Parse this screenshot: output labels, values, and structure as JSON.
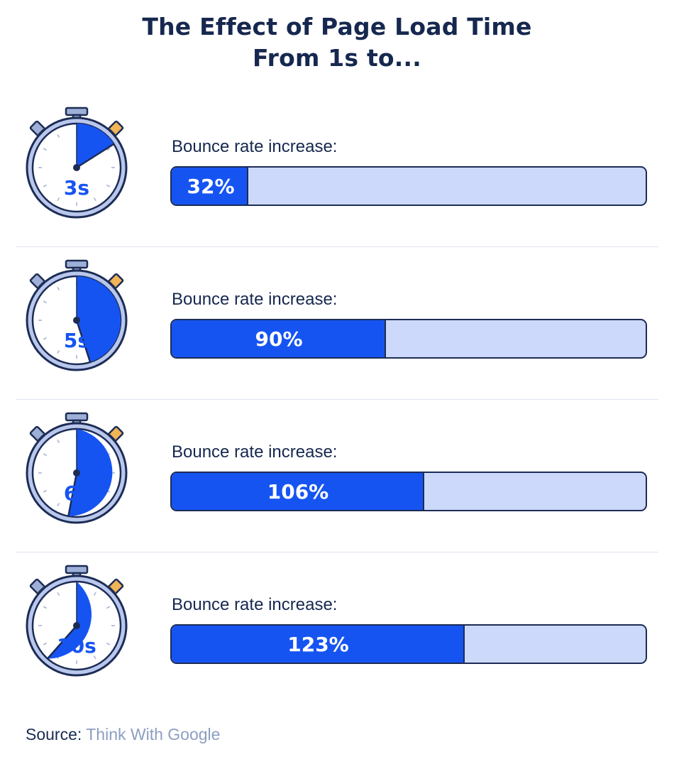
{
  "header": {
    "title_line1": "The Effect of Page Load Time",
    "title_line2": "From 1s to..."
  },
  "chart_data": {
    "type": "bar",
    "title": "The Effect of Page Load Time From 1s to...",
    "categories": [
      "3s",
      "5s",
      "6s",
      "10s"
    ],
    "series": [
      {
        "name": "Bounce rate increase:",
        "values": [
          32,
          90,
          106,
          123
        ]
      }
    ],
    "value_labels": [
      "32%",
      "90%",
      "106%",
      "123%"
    ],
    "unit": "%",
    "fill_fraction": [
      0.16,
      0.45,
      0.53,
      0.615
    ],
    "orientation": "horizontal"
  },
  "rows": [
    {
      "time_label": "3s",
      "metric_label": "Bounce rate increase:",
      "value_label": "32%"
    },
    {
      "time_label": "5s",
      "metric_label": "Bounce rate increase:",
      "value_label": "90%"
    },
    {
      "time_label": "6s",
      "metric_label": "Bounce rate increase:",
      "value_label": "106%"
    },
    {
      "time_label": "10s",
      "metric_label": "Bounce rate increase:",
      "value_label": "123%"
    }
  ],
  "icons": {
    "timer": "stopwatch-icon"
  },
  "colors": {
    "bar_fill": "#1654f2",
    "bar_track": "#cdd9fa",
    "outline": "#1c2c55",
    "title": "#16284f",
    "source_value": "#8c9ec0"
  },
  "footer": {
    "source_prefix": "Source:",
    "source_name": "Think With Google"
  }
}
